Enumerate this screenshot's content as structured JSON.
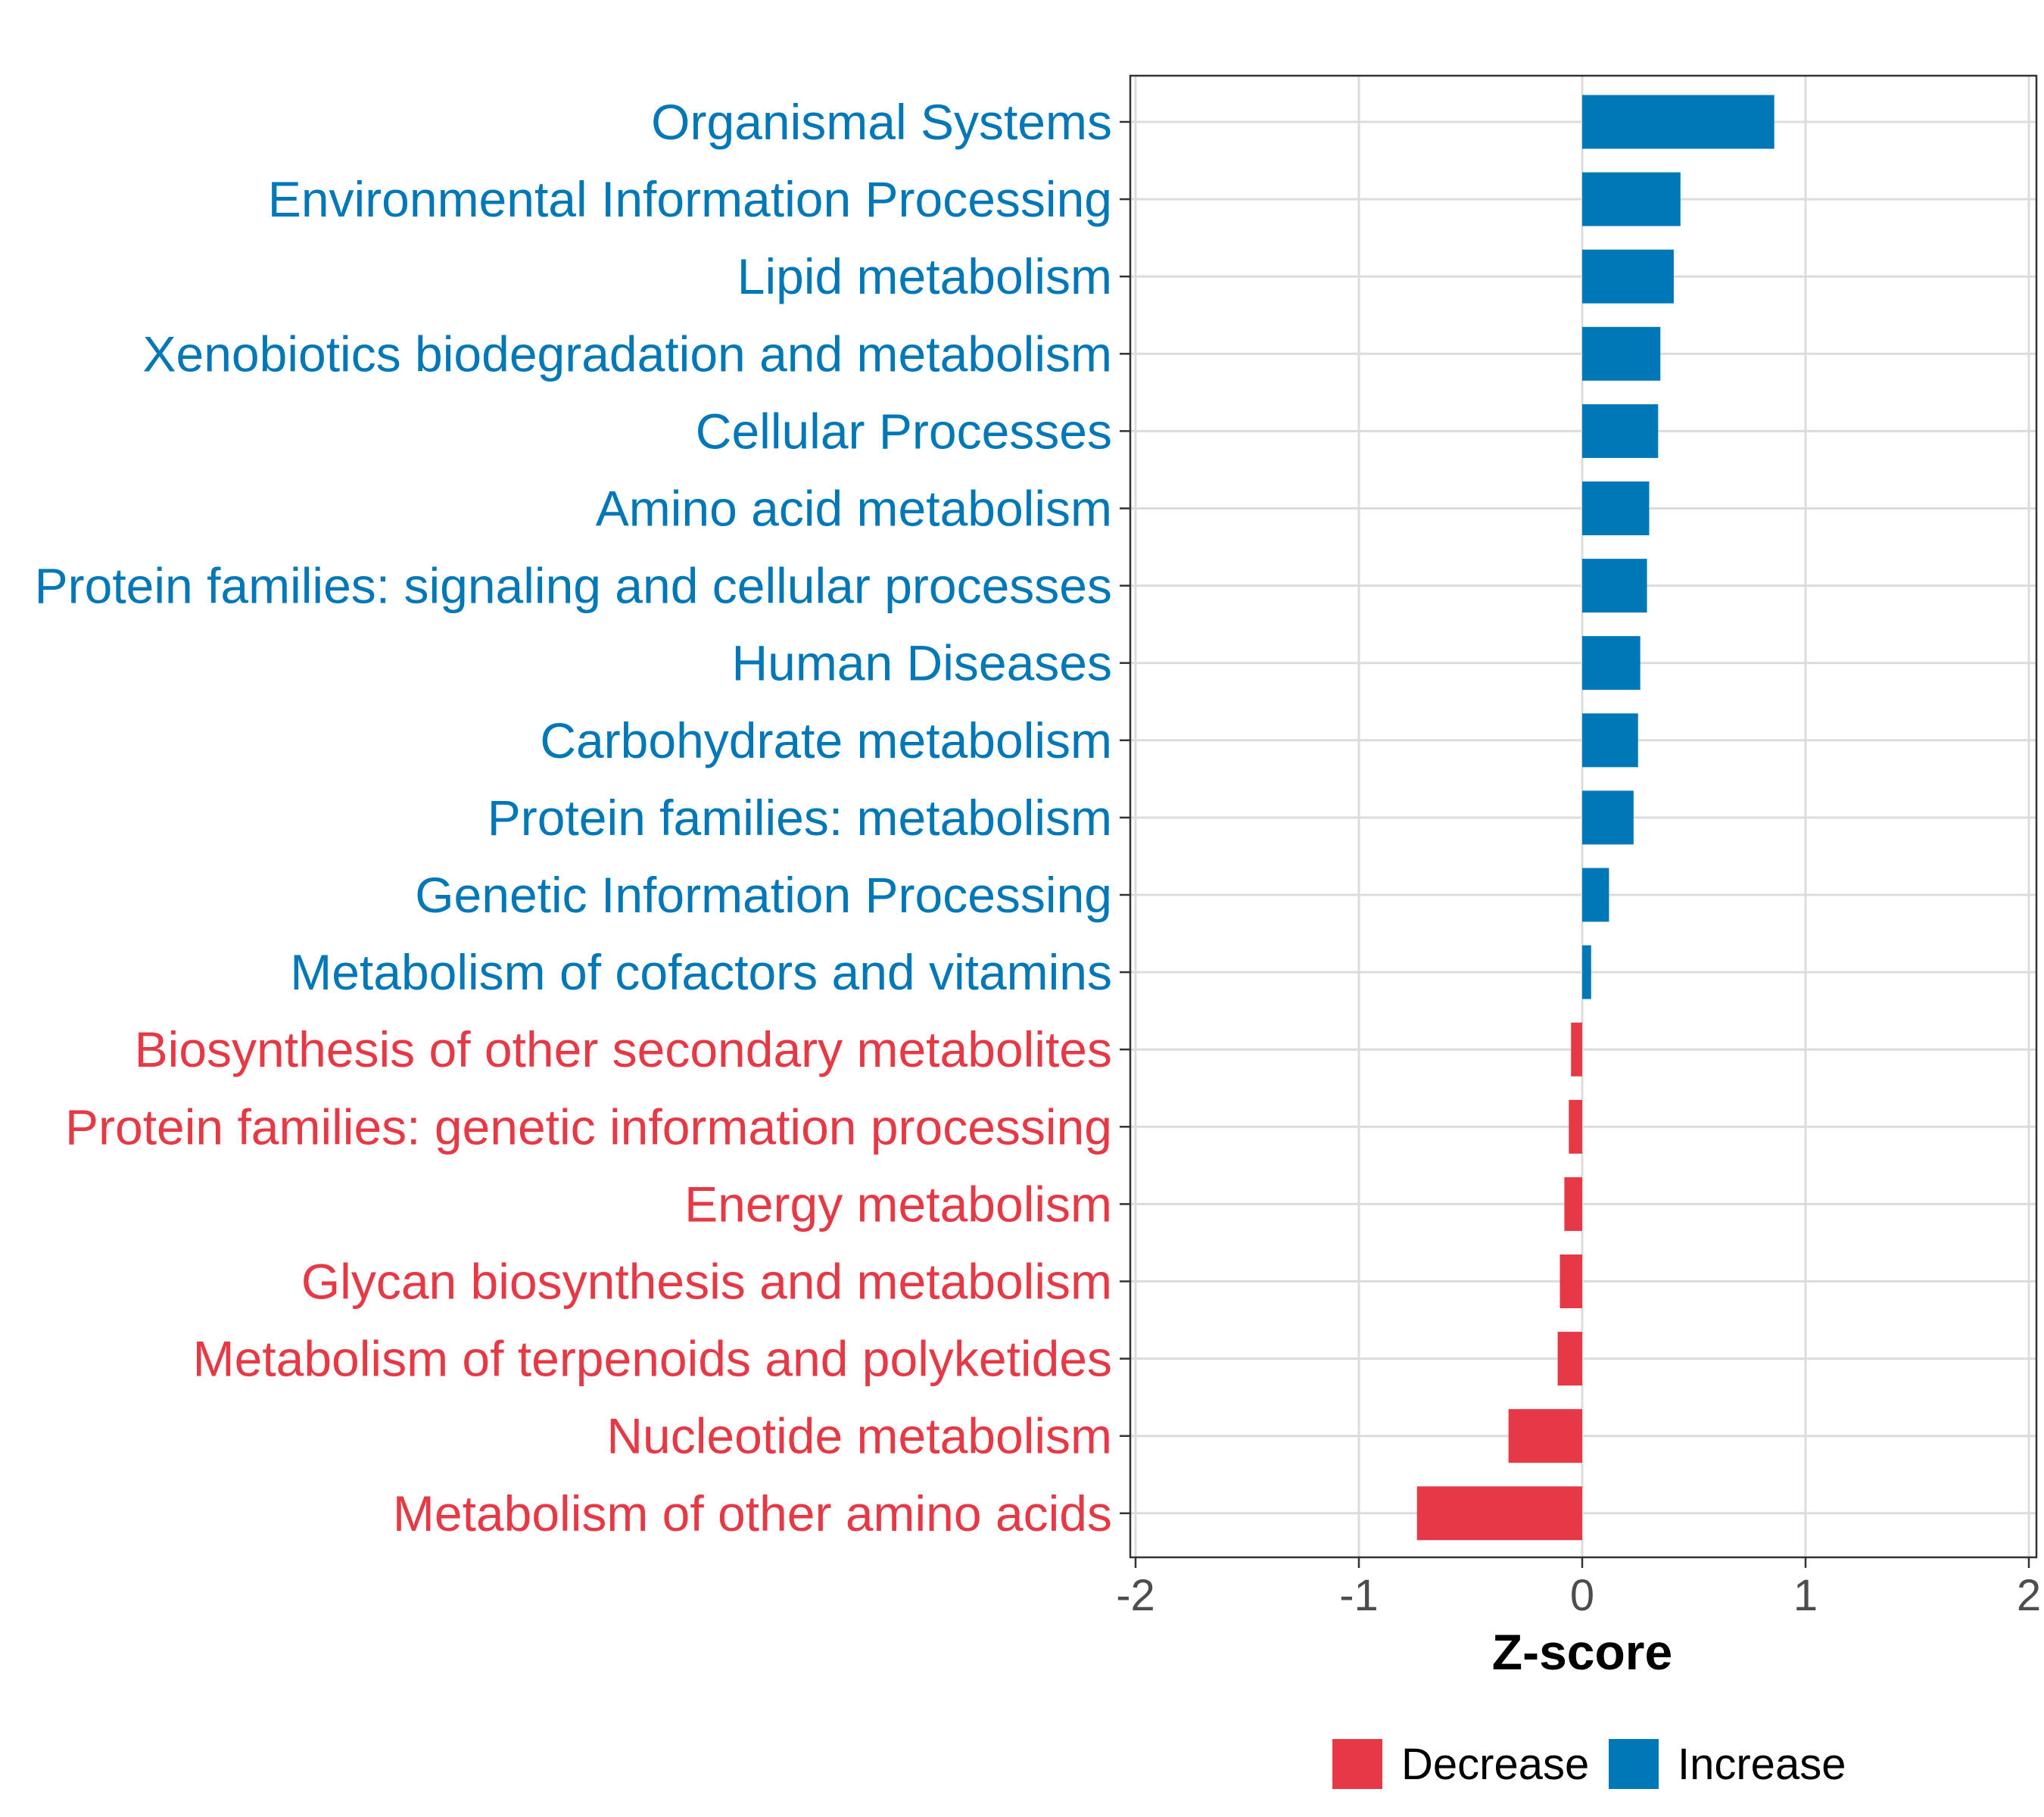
{
  "chart_data": {
    "type": "bar",
    "orientation": "horizontal",
    "title": "",
    "xlabel": "Z-score",
    "ylabel": "",
    "xlim": [
      -2,
      2
    ],
    "x_ticks": [
      "-2",
      "-1",
      "0",
      "1",
      "2"
    ],
    "grid": true,
    "categories": [
      "Organismal Systems",
      "Environmental Information Processing",
      "Lipid metabolism",
      "Xenobiotics biodegradation and metabolism",
      "Cellular Processes",
      "Amino acid metabolism",
      "Protein families: signaling and cellular processes",
      "Human Diseases",
      "Carbohydrate metabolism",
      "Protein families: metabolism",
      "Genetic Information Processing",
      "Metabolism of cofactors and vitamins",
      "Biosynthesis of other secondary metabolites",
      "Protein families: genetic information processing",
      "Energy metabolism",
      "Glycan biosynthesis and metabolism",
      "Metabolism of terpenoids and polyketides",
      "Nucleotide metabolism",
      "Metabolism of other amino acids"
    ],
    "values": [
      0.86,
      0.44,
      0.41,
      0.35,
      0.34,
      0.3,
      0.29,
      0.26,
      0.25,
      0.23,
      0.12,
      0.04,
      -0.05,
      -0.06,
      -0.08,
      -0.1,
      -0.11,
      -0.33,
      -0.74
    ],
    "legend": {
      "position": "bottom",
      "items": [
        {
          "label": "Decrease",
          "color": "#E63946"
        },
        {
          "label": "Increase",
          "color": "#0077B6"
        }
      ]
    },
    "colors": {
      "decrease": "#E63946",
      "increase": "#0077B6"
    }
  }
}
